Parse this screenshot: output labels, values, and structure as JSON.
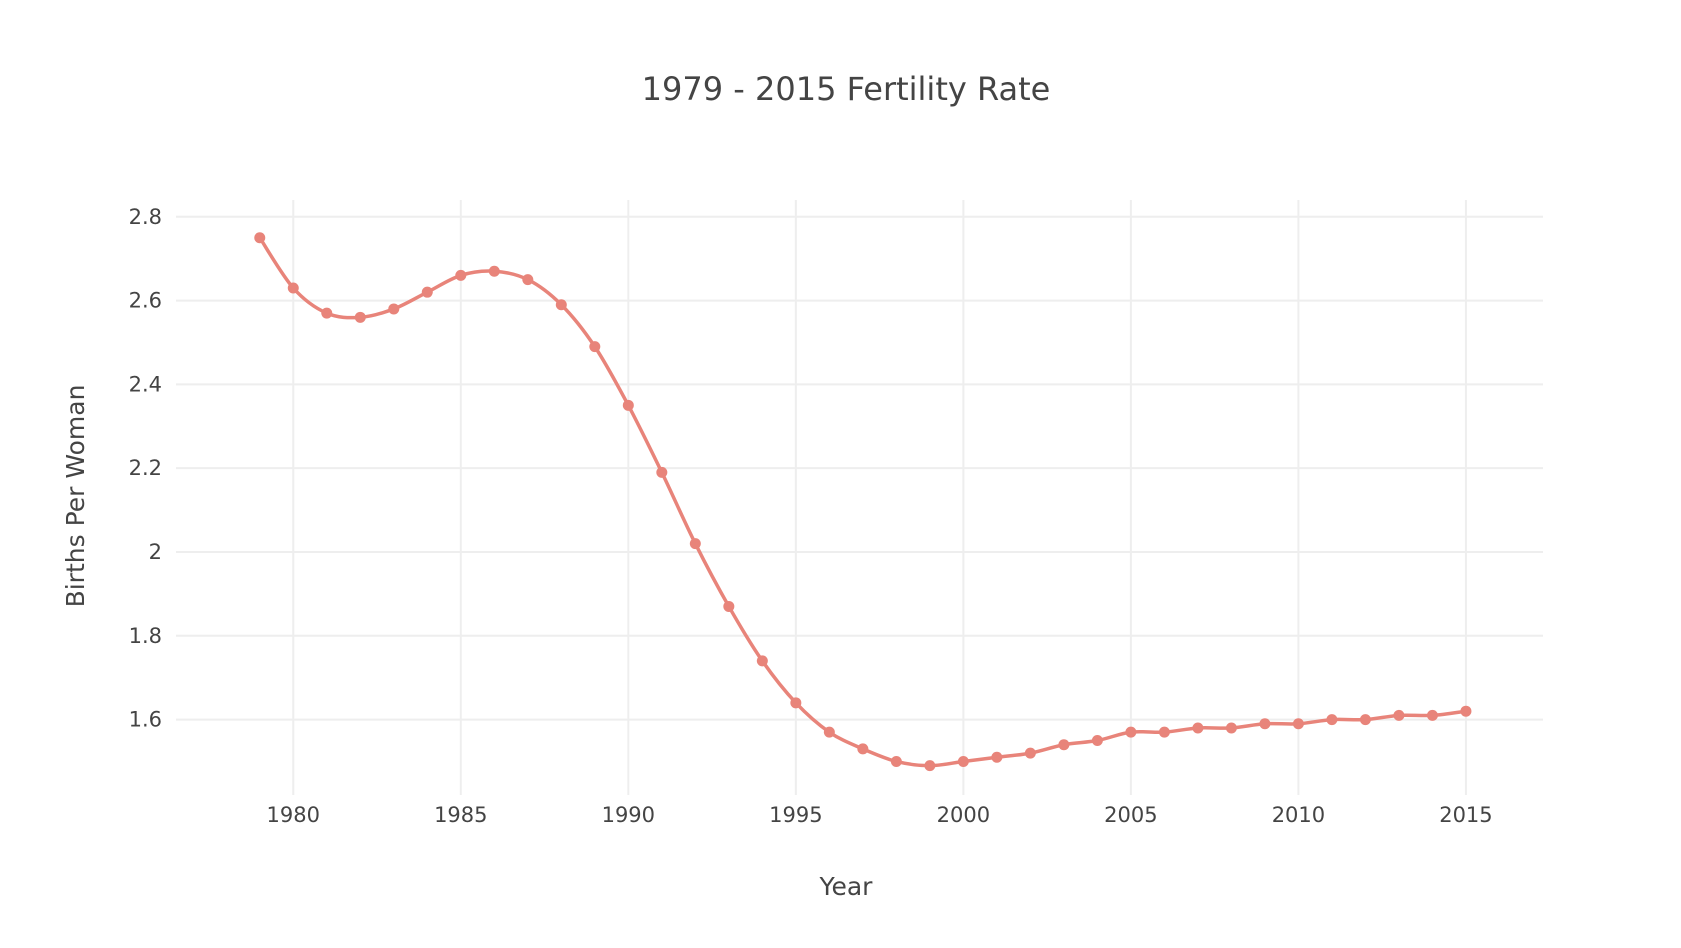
{
  "chart_data": {
    "type": "line",
    "title": "1979 - 2015 Fertility Rate",
    "xlabel": "Year",
    "ylabel": "Births Per Woman",
    "xlim": [
      1976.5,
      2017.3
    ],
    "ylim": [
      1.42,
      2.84
    ],
    "x_ticks": [
      1980,
      1985,
      1990,
      1995,
      2000,
      2005,
      2010,
      2015
    ],
    "x_tick_labels": [
      "1980",
      "1985",
      "1990",
      "1995",
      "2000",
      "2005",
      "2010",
      "2015"
    ],
    "y_ticks": [
      1.6,
      1.8,
      2.0,
      2.2,
      2.4,
      2.6,
      2.8
    ],
    "y_tick_labels": [
      "1.6",
      "1.8",
      "2",
      "2.2",
      "2.4",
      "2.6",
      "2.8"
    ],
    "grid": true,
    "color": "#E8847A",
    "series": [
      {
        "x": [
          1979,
          1980,
          1981,
          1982,
          1983,
          1984,
          1985,
          1986,
          1987,
          1988,
          1989,
          1990,
          1991,
          1992,
          1993,
          1994,
          1995,
          1996,
          1997,
          1998,
          1999,
          2000,
          2001,
          2002,
          2003,
          2004,
          2005,
          2006,
          2007,
          2008,
          2009,
          2010,
          2011,
          2012,
          2013,
          2014,
          2015
        ],
        "y": [
          2.75,
          2.63,
          2.57,
          2.56,
          2.58,
          2.62,
          2.66,
          2.67,
          2.65,
          2.59,
          2.49,
          2.35,
          2.19,
          2.02,
          1.87,
          1.74,
          1.64,
          1.57,
          1.53,
          1.5,
          1.49,
          1.5,
          1.51,
          1.52,
          1.54,
          1.55,
          1.57,
          1.57,
          1.58,
          1.58,
          1.59,
          1.59,
          1.6,
          1.6,
          1.61,
          1.61,
          1.62
        ]
      }
    ]
  }
}
